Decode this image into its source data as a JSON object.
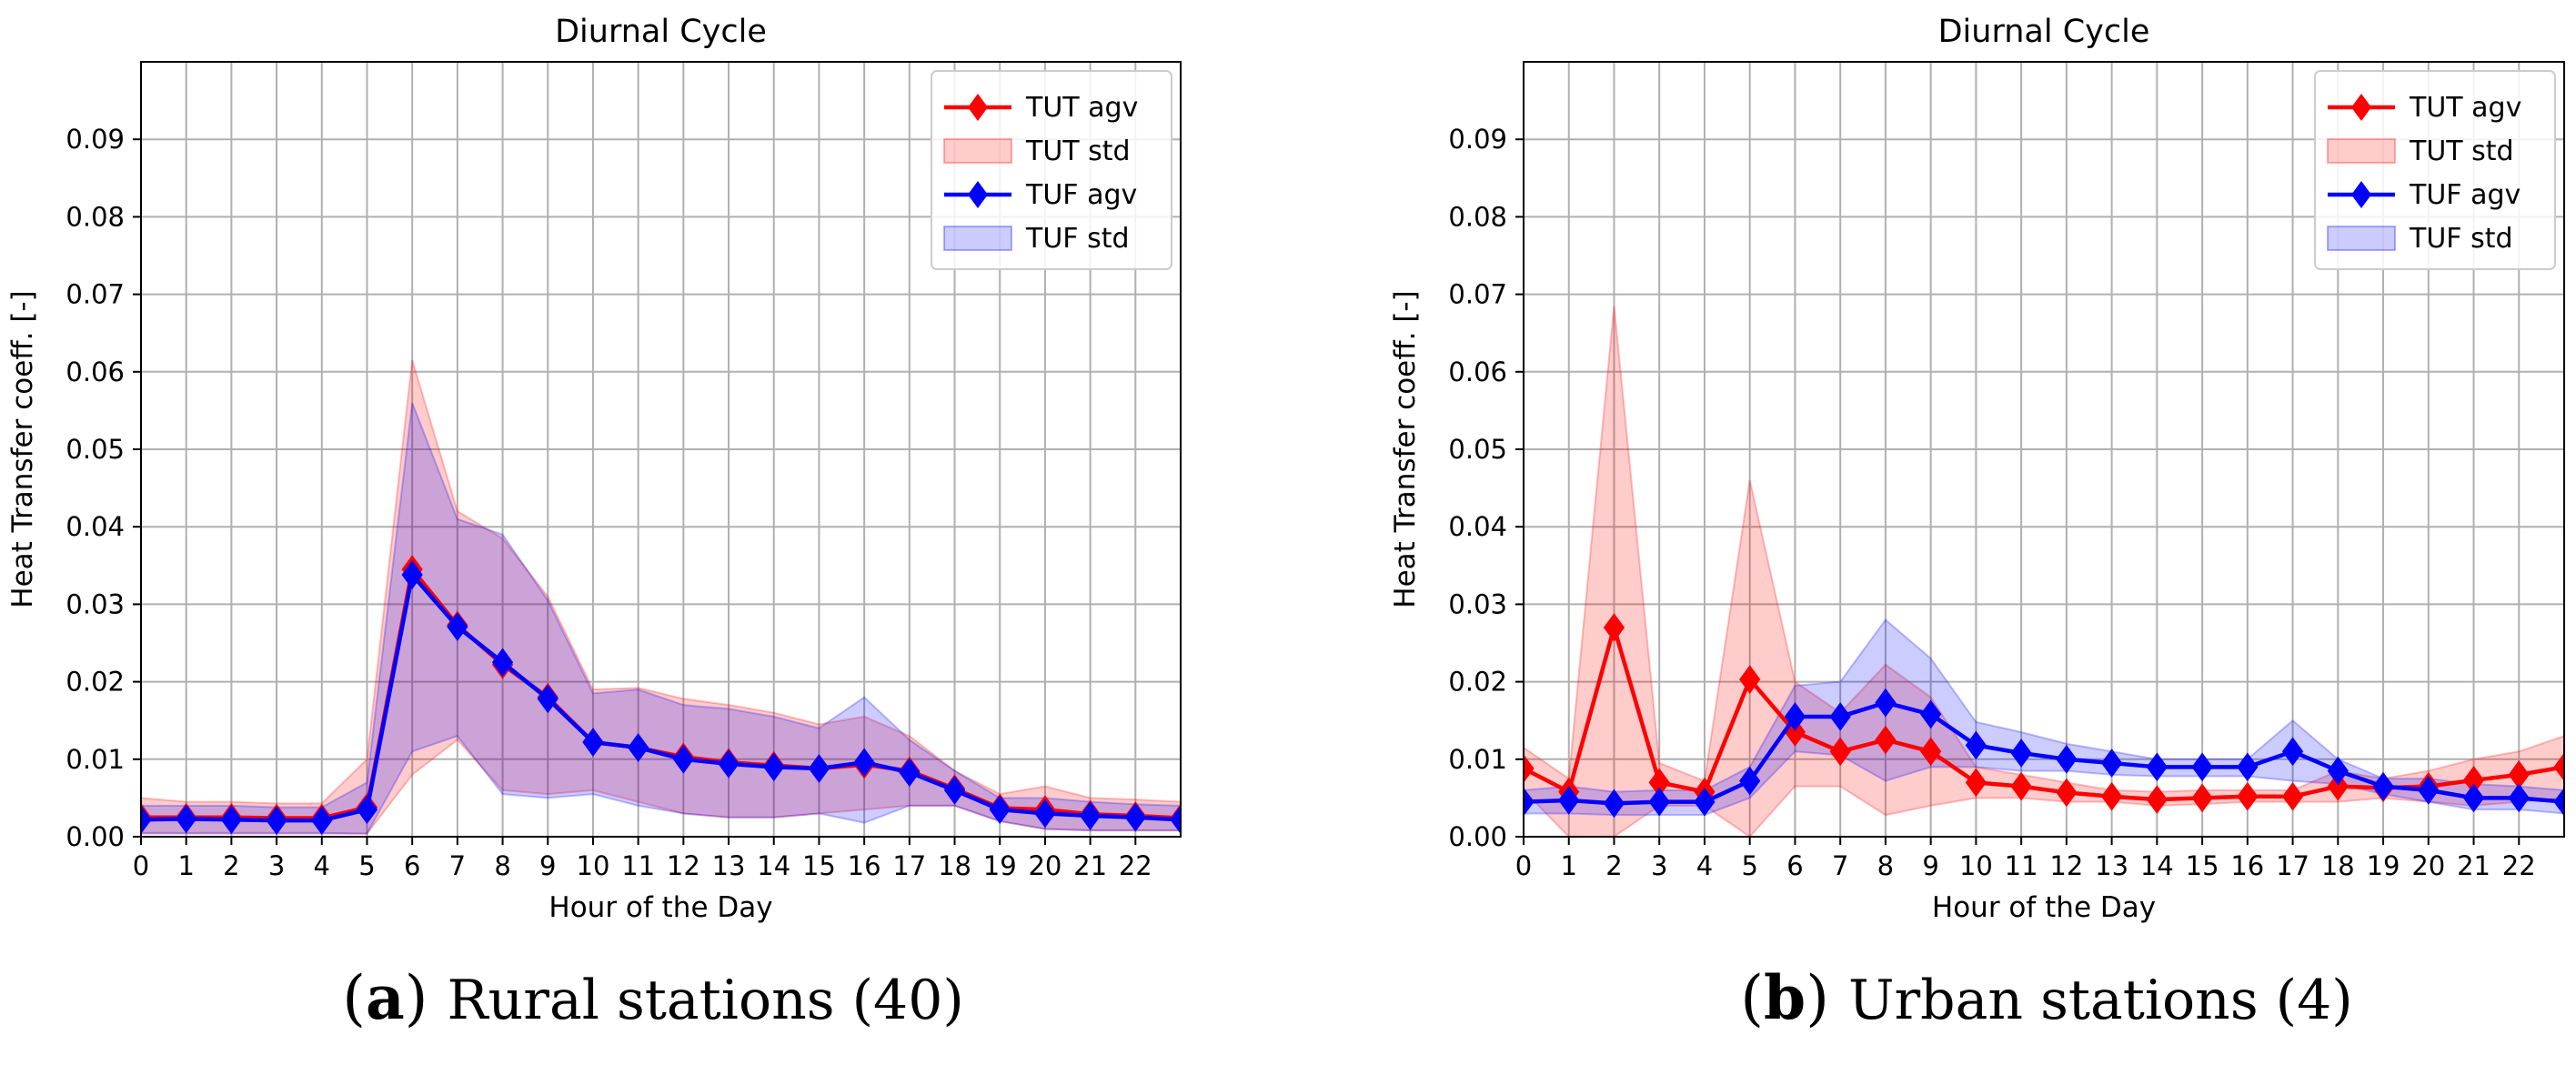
{
  "colors": {
    "tut": "#ff0000",
    "tut_fill": "#ff0000",
    "tuf": "#0000ff",
    "tuf_fill": "#0000ff",
    "grid": "#b0b0b0",
    "axis": "#000000"
  },
  "chart_data": [
    {
      "type": "line",
      "title": "Diurnal Cycle",
      "xlabel": "Hour of the Day",
      "ylabel": "Heat Transfer coeff. [-]",
      "xlim": [
        0,
        23
      ],
      "ylim": [
        0,
        0.1
      ],
      "xticks": [
        0,
        1,
        2,
        3,
        4,
        5,
        6,
        7,
        8,
        9,
        10,
        11,
        12,
        13,
        14,
        15,
        16,
        17,
        18,
        19,
        20,
        21,
        22
      ],
      "xtick_labels": [
        "0",
        "1",
        "2",
        "3",
        "4",
        "5",
        "6",
        "7",
        "8",
        "9",
        "10",
        "11",
        "12",
        "13",
        "14",
        "15",
        "16",
        "17",
        "18",
        "19",
        "20",
        "21",
        "22"
      ],
      "yticks": [
        0,
        0.01,
        0.02,
        0.03,
        0.04,
        0.05,
        0.06,
        0.07,
        0.08,
        0.09
      ],
      "ytick_labels": [
        "0.00",
        "0.01",
        "0.02",
        "0.03",
        "0.04",
        "0.05",
        "0.06",
        "0.07",
        "0.08",
        "0.09"
      ],
      "grid": true,
      "legend_position": "top-right",
      "legend": [
        "TUT agv",
        "TUT std",
        "TUF agv",
        "TUF std"
      ],
      "x": [
        0,
        1,
        2,
        3,
        4,
        5,
        6,
        7,
        8,
        9,
        10,
        11,
        12,
        13,
        14,
        15,
        16,
        17,
        18,
        19,
        20,
        21,
        22,
        23
      ],
      "series": [
        {
          "name": "TUT agv",
          "kind": "line",
          "color_key": "tut",
          "values": [
            0.0025,
            0.0025,
            0.0025,
            0.0024,
            0.0024,
            0.0038,
            0.0345,
            0.0273,
            0.0222,
            0.018,
            0.0122,
            0.0115,
            0.0103,
            0.0096,
            0.0092,
            0.0088,
            0.0093,
            0.0085,
            0.0062,
            0.0037,
            0.0035,
            0.0029,
            0.0027,
            0.0024
          ]
        },
        {
          "name": "TUT std",
          "kind": "band",
          "color_key": "tut_fill",
          "lower": [
            0.0005,
            0.0005,
            0.0005,
            0.0005,
            0.0005,
            0.0004,
            0.008,
            0.0125,
            0.006,
            0.0055,
            0.006,
            0.0045,
            0.003,
            0.0025,
            0.0025,
            0.003,
            0.0035,
            0.004,
            0.004,
            0.002,
            0.001,
            0.0008,
            0.0008,
            0.0008
          ],
          "upper": [
            0.005,
            0.0045,
            0.0045,
            0.0043,
            0.0043,
            0.01,
            0.0615,
            0.042,
            0.0385,
            0.031,
            0.019,
            0.0192,
            0.0178,
            0.017,
            0.016,
            0.0145,
            0.0155,
            0.013,
            0.0085,
            0.0055,
            0.0065,
            0.005,
            0.0048,
            0.0045
          ]
        },
        {
          "name": "TUF agv",
          "kind": "line",
          "color_key": "tuf",
          "values": [
            0.0022,
            0.0023,
            0.0022,
            0.0021,
            0.0021,
            0.0035,
            0.0338,
            0.0271,
            0.0225,
            0.0178,
            0.0122,
            0.0115,
            0.01,
            0.0094,
            0.009,
            0.0088,
            0.0096,
            0.0083,
            0.006,
            0.0035,
            0.003,
            0.0027,
            0.0025,
            0.0022
          ]
        },
        {
          "name": "TUF std",
          "kind": "band",
          "color_key": "tuf_fill",
          "lower": [
            0.0004,
            0.0004,
            0.0004,
            0.0004,
            0.0004,
            0.0004,
            0.011,
            0.013,
            0.0055,
            0.005,
            0.0055,
            0.004,
            0.003,
            0.0025,
            0.0025,
            0.003,
            0.0018,
            0.004,
            0.004,
            0.002,
            0.001,
            0.0008,
            0.0008,
            0.0008
          ],
          "upper": [
            0.004,
            0.004,
            0.004,
            0.0038,
            0.0038,
            0.007,
            0.056,
            0.041,
            0.039,
            0.0305,
            0.0185,
            0.019,
            0.017,
            0.0165,
            0.0155,
            0.014,
            0.018,
            0.0125,
            0.0085,
            0.005,
            0.005,
            0.0045,
            0.0042,
            0.004
          ]
        }
      ],
      "caption": {
        "letter": "a",
        "text": "Rural stations (40)"
      }
    },
    {
      "type": "line",
      "title": "Diurnal Cycle",
      "xlabel": "Hour of the Day",
      "ylabel": "Heat Transfer coeff. [-]",
      "xlim": [
        0,
        23
      ],
      "ylim": [
        0,
        0.1
      ],
      "xticks": [
        0,
        1,
        2,
        3,
        4,
        5,
        6,
        7,
        8,
        9,
        10,
        11,
        12,
        13,
        14,
        15,
        16,
        17,
        18,
        19,
        20,
        21,
        22
      ],
      "xtick_labels": [
        "0",
        "1",
        "2",
        "3",
        "4",
        "5",
        "6",
        "7",
        "8",
        "9",
        "10",
        "11",
        "12",
        "13",
        "14",
        "15",
        "16",
        "17",
        "18",
        "19",
        "20",
        "21",
        "22"
      ],
      "yticks": [
        0,
        0.01,
        0.02,
        0.03,
        0.04,
        0.05,
        0.06,
        0.07,
        0.08,
        0.09
      ],
      "ytick_labels": [
        "0.00",
        "0.01",
        "0.02",
        "0.03",
        "0.04",
        "0.05",
        "0.06",
        "0.07",
        "0.08",
        "0.09"
      ],
      "grid": true,
      "legend_position": "top-right",
      "legend": [
        "TUT agv",
        "TUT std",
        "TUF agv",
        "TUF std"
      ],
      "x": [
        0,
        1,
        2,
        3,
        4,
        5,
        6,
        7,
        8,
        9,
        10,
        11,
        12,
        13,
        14,
        15,
        16,
        17,
        18,
        19,
        20,
        21,
        22,
        23
      ],
      "series": [
        {
          "name": "TUT agv",
          "kind": "line",
          "color_key": "tut",
          "values": [
            0.0088,
            0.0058,
            0.027,
            0.007,
            0.0058,
            0.0203,
            0.0135,
            0.011,
            0.0125,
            0.011,
            0.007,
            0.0065,
            0.0057,
            0.0052,
            0.0048,
            0.005,
            0.0052,
            0.0052,
            0.0065,
            0.0063,
            0.0065,
            0.0073,
            0.008,
            0.009
          ]
        },
        {
          "name": "TUT std",
          "kind": "band",
          "color_key": "tut_fill",
          "lower": [
            0.006,
            0.0,
            0.0,
            0.004,
            0.004,
            0.0,
            0.0065,
            0.0065,
            0.0028,
            0.004,
            0.005,
            0.005,
            0.0045,
            0.0045,
            0.004,
            0.0042,
            0.0045,
            0.0045,
            0.0045,
            0.005,
            0.0045,
            0.004,
            0.0045,
            0.005
          ],
          "upper": [
            0.0115,
            0.0075,
            0.0685,
            0.0095,
            0.0072,
            0.046,
            0.02,
            0.016,
            0.0222,
            0.018,
            0.009,
            0.008,
            0.007,
            0.006,
            0.0058,
            0.006,
            0.006,
            0.006,
            0.0085,
            0.0075,
            0.0085,
            0.01,
            0.011,
            0.013
          ]
        },
        {
          "name": "TUF agv",
          "kind": "line",
          "color_key": "tuf",
          "values": [
            0.0045,
            0.0047,
            0.0043,
            0.0045,
            0.0045,
            0.0072,
            0.0155,
            0.0155,
            0.0173,
            0.0158,
            0.0118,
            0.0108,
            0.01,
            0.0095,
            0.009,
            0.009,
            0.009,
            0.011,
            0.0085,
            0.0065,
            0.006,
            0.005,
            0.005,
            0.0045
          ]
        },
        {
          "name": "TUF std",
          "kind": "band",
          "color_key": "tuf_fill",
          "lower": [
            0.003,
            0.003,
            0.0028,
            0.0028,
            0.0028,
            0.005,
            0.011,
            0.0105,
            0.0072,
            0.009,
            0.009,
            0.0085,
            0.0085,
            0.008,
            0.0078,
            0.0078,
            0.0078,
            0.0072,
            0.0068,
            0.0055,
            0.0045,
            0.0035,
            0.0035,
            0.003
          ],
          "upper": [
            0.006,
            0.0065,
            0.0058,
            0.006,
            0.006,
            0.009,
            0.0195,
            0.02,
            0.028,
            0.023,
            0.0148,
            0.0135,
            0.012,
            0.011,
            0.01,
            0.01,
            0.01,
            0.015,
            0.01,
            0.0075,
            0.0075,
            0.0068,
            0.0065,
            0.006
          ]
        }
      ],
      "caption": {
        "letter": "b",
        "text": "Urban stations (4)"
      }
    }
  ]
}
